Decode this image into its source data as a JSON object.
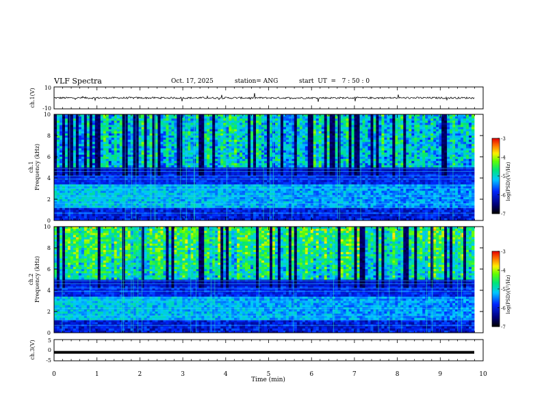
{
  "header": {
    "title": "VLF Spectra",
    "date": "Oct. 17, 2025",
    "station": "station= ANG",
    "start_ut": "start  UT  =   7 : 50 : 0"
  },
  "chart_data": [
    {
      "type": "line",
      "panel": "ch1-waveform",
      "ylabel": "ch.1(V)",
      "ylim": [
        -10,
        10
      ],
      "yticks": [
        "10",
        "-10"
      ],
      "xlim": [
        0,
        10
      ],
      "description_value": "noisy waveform near 0 V with occasional spikes"
    },
    {
      "type": "heatmap",
      "panel": "ch1-spectrogram",
      "ylabel": "ch.1",
      "ylabel2": "Frequency (kHz)",
      "ylim": [
        0,
        10
      ],
      "yticks": [
        "0",
        "2",
        "4",
        "6",
        "8",
        "10"
      ],
      "xlim": [
        0,
        10
      ],
      "colorbar": {
        "label": "log(PSD)(V²/Hz)",
        "range": [
          -7,
          -3
        ],
        "ticks": [
          "-3",
          "-4",
          "-5",
          "-6",
          "-7"
        ]
      }
    },
    {
      "type": "heatmap",
      "panel": "ch2-spectrogram",
      "ylabel": "ch.2",
      "ylabel2": "Frequency (kHz)",
      "ylim": [
        0,
        10
      ],
      "yticks": [
        "0",
        "2",
        "4",
        "6",
        "8",
        "10"
      ],
      "xlim": [
        0,
        10
      ],
      "colorbar": {
        "label": "log(PSD)(V²/Hz)",
        "range": [
          -7,
          -3
        ],
        "ticks": [
          "-3",
          "-4",
          "-5",
          "-6",
          "-7"
        ]
      }
    },
    {
      "type": "line",
      "panel": "ch3-waveform",
      "ylabel": "ch.3(V)",
      "ylim": [
        -5,
        5
      ],
      "yticks": [
        "5",
        "0",
        "-5"
      ],
      "xlim": [
        0,
        10
      ],
      "constant_value": -1
    }
  ],
  "xaxis": {
    "label": "Time  (min)",
    "ticks": [
      "0",
      "1",
      "2",
      "3",
      "4",
      "5",
      "6",
      "7",
      "8",
      "9",
      "10"
    ]
  },
  "colors": {
    "low": "#000060",
    "mid": "#00e0a0",
    "high": "#ff2000"
  }
}
